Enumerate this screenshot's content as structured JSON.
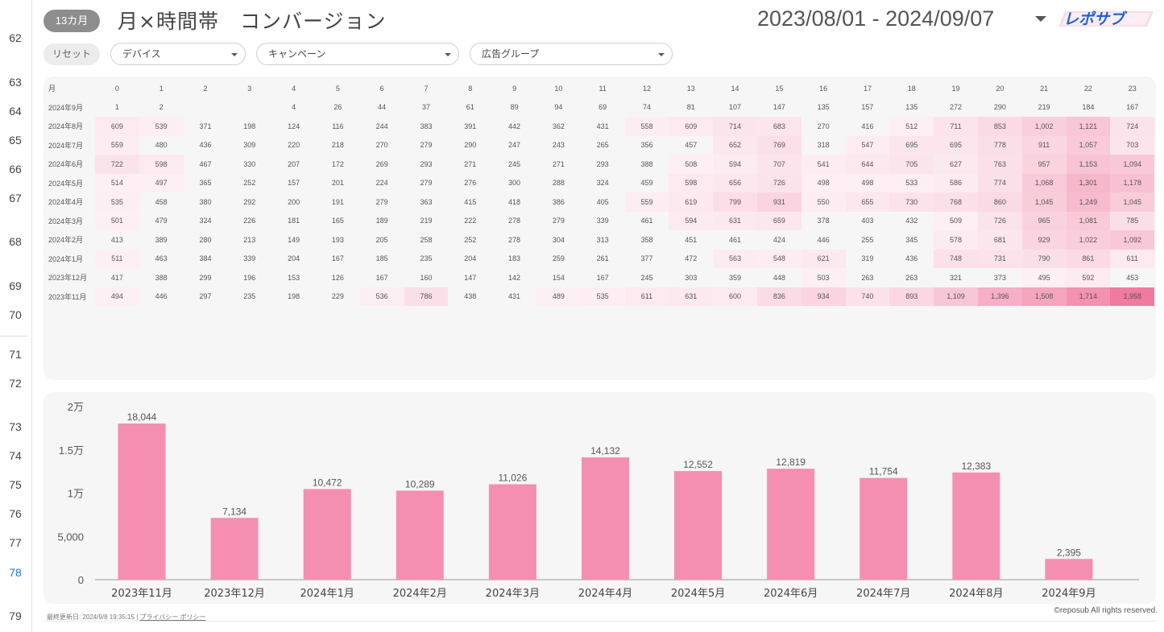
{
  "gutter": {
    "pages": [
      "62",
      "63",
      "64",
      "65",
      "66",
      "67",
      "68",
      "69",
      "70",
      "71",
      "72",
      "73",
      "74",
      "75",
      "76",
      "77",
      "78",
      "79"
    ],
    "active": "78"
  },
  "header": {
    "badge": "13カ月",
    "title": "月×時間帯　コンバージョン",
    "date_range": "2023/08/01 - 2024/09/07",
    "logo_text": "レポサブ"
  },
  "filters": {
    "reset": "リセット",
    "device": "デバイス",
    "campaign": "キャンペーン",
    "adgroup": "広告グループ"
  },
  "heatmap": {
    "corner": "月",
    "hours": [
      "0",
      "1",
      "2",
      "3",
      "4",
      "5",
      "6",
      "7",
      "8",
      "9",
      "10",
      "11",
      "12",
      "13",
      "14",
      "15",
      "16",
      "17",
      "18",
      "19",
      "20",
      "21",
      "22",
      "23"
    ],
    "rows": [
      {
        "label": "2024年9月",
        "values": [
          1,
          2,
          null,
          null,
          4,
          26,
          44,
          37,
          61,
          89,
          94,
          69,
          74,
          81,
          107,
          147,
          135,
          157,
          135,
          272,
          290,
          219,
          184,
          167
        ]
      },
      {
        "label": "2024年8月",
        "values": [
          609,
          539,
          371,
          198,
          124,
          116,
          244,
          383,
          391,
          442,
          362,
          431,
          558,
          609,
          714,
          683,
          270,
          416,
          512,
          711,
          853,
          1002,
          1121,
          724
        ]
      },
      {
        "label": "2024年7月",
        "values": [
          559,
          480,
          436,
          309,
          220,
          218,
          270,
          279,
          290,
          247,
          243,
          265,
          356,
          457,
          652,
          769,
          318,
          547,
          695,
          695,
          778,
          911,
          1057,
          703
        ]
      },
      {
        "label": "2024年6月",
        "values": [
          722,
          598,
          467,
          330,
          207,
          172,
          269,
          293,
          271,
          245,
          271,
          293,
          388,
          508,
          594,
          707,
          541,
          644,
          705,
          627,
          763,
          957,
          1153,
          1094
        ]
      },
      {
        "label": "2024年5月",
        "values": [
          514,
          497,
          365,
          252,
          157,
          201,
          224,
          279,
          276,
          300,
          288,
          324,
          459,
          598,
          656,
          726,
          498,
          498,
          533,
          586,
          774,
          1068,
          1301,
          1178
        ]
      },
      {
        "label": "2024年4月",
        "values": [
          535,
          458,
          380,
          292,
          200,
          191,
          279,
          363,
          415,
          418,
          386,
          405,
          559,
          619,
          799,
          931,
          550,
          655,
          730,
          768,
          860,
          1045,
          1249,
          1045
        ]
      },
      {
        "label": "2024年3月",
        "values": [
          501,
          479,
          324,
          226,
          181,
          165,
          189,
          219,
          222,
          278,
          279,
          339,
          461,
          594,
          631,
          659,
          378,
          403,
          432,
          509,
          726,
          965,
          1081,
          785
        ]
      },
      {
        "label": "2024年2月",
        "values": [
          413,
          389,
          280,
          213,
          149,
          193,
          205,
          258,
          252,
          278,
          304,
          313,
          358,
          451,
          461,
          424,
          446,
          255,
          345,
          578,
          681,
          929,
          1022,
          1092
        ]
      },
      {
        "label": "2024年1月",
        "values": [
          511,
          463,
          384,
          339,
          204,
          167,
          185,
          235,
          204,
          183,
          259,
          261,
          377,
          472,
          563,
          548,
          621,
          319,
          436,
          748,
          731,
          790,
          861,
          611
        ]
      },
      {
        "label": "2023年12月",
        "values": [
          417,
          388,
          299,
          196,
          153,
          126,
          167,
          160,
          147,
          142,
          154,
          167,
          245,
          303,
          359,
          448,
          503,
          263,
          263,
          321,
          373,
          495,
          592,
          453
        ]
      },
      {
        "label": "2023年11月",
        "values": [
          494,
          446,
          297,
          235,
          198,
          229,
          536,
          786,
          438,
          431,
          489,
          535,
          611,
          631,
          600,
          836,
          934,
          740,
          893,
          1109,
          1396,
          1508,
          1714,
          1958
        ]
      }
    ],
    "color_max": "#f07aa0",
    "color_min": "#ffffff"
  },
  "chart_data": {
    "type": "bar",
    "categories": [
      "2023年11月",
      "2023年12月",
      "2024年1月",
      "2024年2月",
      "2024年3月",
      "2024年4月",
      "2024年5月",
      "2024年6月",
      "2024年7月",
      "2024年8月",
      "2024年9月"
    ],
    "values": [
      18044,
      7134,
      10472,
      10289,
      11026,
      14132,
      12552,
      12819,
      11754,
      12383,
      2395
    ],
    "data_labels": [
      "18,044",
      "7,134",
      "10,472",
      "10,289",
      "11,026",
      "14,132",
      "12,552",
      "12,819",
      "11,754",
      "12,383",
      "2,395"
    ],
    "ylim": [
      0,
      20000
    ],
    "yticks": [
      0,
      5000,
      10000,
      15000,
      20000
    ],
    "ytick_labels": [
      "0",
      "5,000",
      "1万",
      "1.5万",
      "2万"
    ],
    "bar_color": "#f48fb1",
    "title": "",
    "xlabel": "",
    "ylabel": ""
  },
  "footer": {
    "updated": "最終更新日: 2024/9/8 19:35:15",
    "divider": "|",
    "privacy": "プライバシー ポリシー",
    "copyright": "©reposub All rights reserved."
  }
}
